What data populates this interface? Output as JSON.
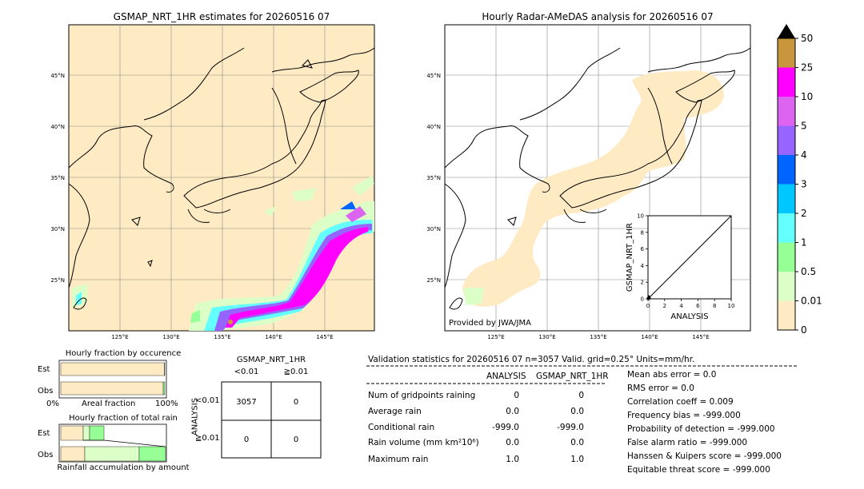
{
  "map_left": {
    "title": "GSMAP_NRT_1HR estimates for 20260516 07",
    "lat_labels": [
      "45°N",
      "40°N",
      "35°N",
      "30°N",
      "25°N"
    ],
    "lon_labels": [
      "125°E",
      "130°E",
      "135°E",
      "140°E",
      "145°E"
    ]
  },
  "map_right": {
    "title": "Hourly Radar-AMeDAS analysis for 20260516 07",
    "lat_labels": [
      "45°N",
      "40°N",
      "35°N",
      "30°N",
      "25°N"
    ],
    "lon_labels": [
      "125°E",
      "130°E",
      "135°E",
      "140°E",
      "145°E"
    ],
    "credit": "Provided by JWA/JMA"
  },
  "colorbar": {
    "labels": [
      "50",
      "25",
      "10",
      "5",
      "4",
      "3",
      "2",
      "1",
      "0.5",
      "0.01",
      "0"
    ],
    "colors": [
      "#c8963c",
      "#ff00ff",
      "#dc64f0",
      "#9664ff",
      "#0064ff",
      "#00c8ff",
      "#64ffff",
      "#96ff96",
      "#dcffc8",
      "#ffebc3"
    ]
  },
  "chart_data": [
    {
      "type": "scatter",
      "xlabel": "ANALYSIS",
      "ylabel": "GSMAP_NRT_1HR",
      "xlim": [
        0,
        10
      ],
      "ylim": [
        0,
        10
      ],
      "xticks": [
        "0",
        "2",
        "4",
        "6",
        "8",
        "10"
      ],
      "yticks": [
        "0",
        "2",
        "4",
        "6",
        "8",
        "10"
      ],
      "reference_line": [
        [
          0,
          0
        ],
        [
          10,
          10
        ]
      ],
      "points": [
        [
          0,
          0
        ],
        [
          0,
          0.1
        ],
        [
          0.1,
          0
        ],
        [
          0.2,
          0.1
        ],
        [
          0.1,
          0.3
        ]
      ]
    },
    {
      "type": "bar",
      "title": "Hourly fraction by occurence",
      "categories": [
        "Est",
        "Obs"
      ],
      "xlabel_left": "0%",
      "xlabel_mid": "Areal fraction",
      "xlabel_right": "100%",
      "series": [
        {
          "values": [
            0.995,
            0.985
          ]
        },
        {
          "values": [
            0.005,
            0.015
          ]
        }
      ]
    },
    {
      "type": "bar",
      "title": "Hourly fraction of total rain",
      "categories": [
        "Est",
        "Obs"
      ],
      "xlabel": "Rainfall accumulation by amount"
    }
  ],
  "contingency": {
    "col_title": "GSMAP_NRT_1HR",
    "col_labels": [
      "<0.01",
      "≧0.01"
    ],
    "row_title": "ANALYSIS",
    "row_labels": [
      "<0.01",
      "≧0.01"
    ],
    "cells": [
      [
        "3057",
        "0"
      ],
      [
        "0",
        "0"
      ]
    ]
  },
  "validation": {
    "header": "Validation statistics for 20260516 07  n=3057 Valid. grid=0.25° Units=mm/hr.",
    "col_analysis": "ANALYSIS",
    "col_gsmap": "GSMAP_NRT_1HR",
    "rows": [
      {
        "label": "Num of gridpoints raining",
        "analysis": "0",
        "gsmap": "0"
      },
      {
        "label": "Average rain",
        "analysis": "0.0",
        "gsmap": "0.0"
      },
      {
        "label": "Conditional rain",
        "analysis": "-999.0",
        "gsmap": "-999.0"
      },
      {
        "label": "Rain volume (mm km²10⁶)",
        "analysis": "0.0",
        "gsmap": "0.0"
      },
      {
        "label": "Maximum rain",
        "analysis": "1.0",
        "gsmap": "1.0"
      }
    ],
    "scores": [
      "Mean abs error =    0.0",
      "RMS error =    0.0",
      "Correlation coeff =  0.009",
      "Frequency bias = -999.000",
      "Probability of detection = -999.000",
      "False alarm ratio = -999.000",
      "Hanssen & Kuipers score = -999.000",
      "Equitable threat score = -999.000"
    ]
  }
}
